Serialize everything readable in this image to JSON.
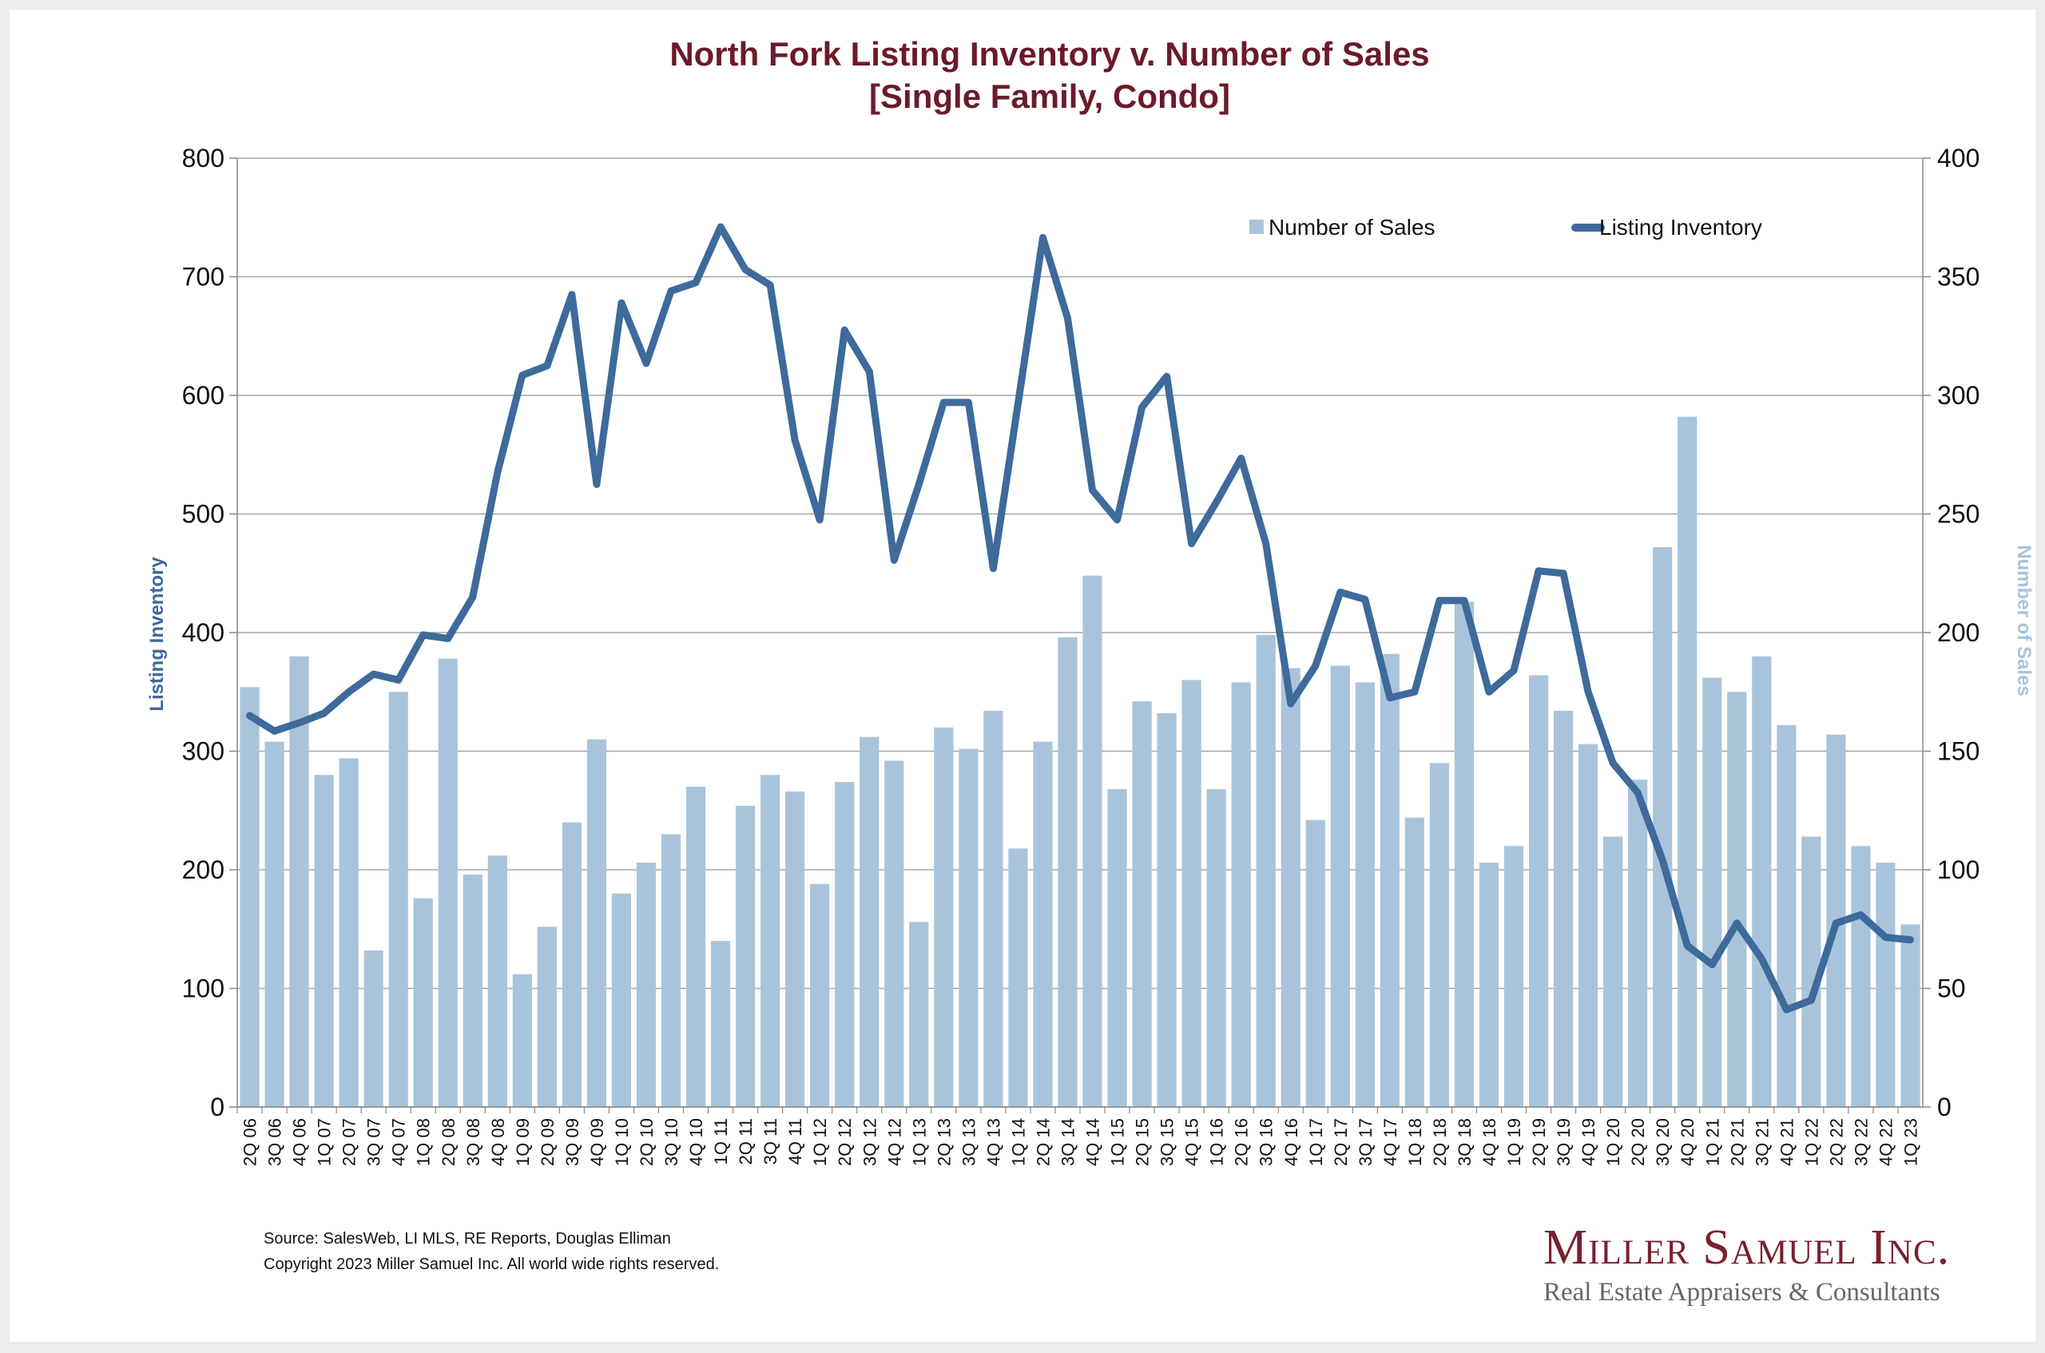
{
  "chart_data": {
    "type": "bar+line",
    "title": "North Fork Listing Inventory v. Number of Sales",
    "subtitle": "[Single Family, Condo]",
    "categories": [
      "2Q 06",
      "3Q 06",
      "4Q 06",
      "1Q 07",
      "2Q 07",
      "3Q 07",
      "4Q 07",
      "1Q 08",
      "2Q 08",
      "3Q 08",
      "4Q 08",
      "1Q 09",
      "2Q 09",
      "3Q 09",
      "4Q 09",
      "1Q 10",
      "2Q 10",
      "3Q 10",
      "4Q 10",
      "1Q 11",
      "2Q 11",
      "3Q 11",
      "4Q 11",
      "1Q 12",
      "2Q 12",
      "3Q 12",
      "4Q 12",
      "1Q 13",
      "2Q 13",
      "3Q 13",
      "4Q 13",
      "1Q 14",
      "2Q 14",
      "3Q 14",
      "4Q 14",
      "1Q 15",
      "2Q 15",
      "3Q 15",
      "4Q 15",
      "1Q 16",
      "2Q 16",
      "3Q 16",
      "4Q 16",
      "1Q 17",
      "2Q 17",
      "3Q 17",
      "4Q 17",
      "1Q 18",
      "2Q 18",
      "3Q 18",
      "4Q 18",
      "1Q 19",
      "2Q 19",
      "3Q 19",
      "4Q 19",
      "1Q 20",
      "2Q 20",
      "3Q 20",
      "4Q 20",
      "1Q 21",
      "2Q 21",
      "3Q 21",
      "4Q 21",
      "1Q 22",
      "2Q 22",
      "3Q 22",
      "4Q 22",
      "1Q 23"
    ],
    "series": [
      {
        "name": "Number of Sales",
        "type": "bar",
        "axis": "right",
        "color": "#a9c4da",
        "values": [
          177,
          154,
          190,
          140,
          147,
          66,
          175,
          88,
          189,
          98,
          106,
          56,
          76,
          120,
          155,
          90,
          103,
          115,
          135,
          70,
          127,
          140,
          133,
          94,
          137,
          156,
          146,
          78,
          160,
          151,
          167,
          109,
          154,
          198,
          224,
          134,
          171,
          166,
          180,
          134,
          179,
          199,
          185,
          121,
          186,
          179,
          191,
          122,
          145,
          213,
          103,
          110,
          182,
          167,
          153,
          114,
          138,
          236,
          291,
          181,
          175,
          190,
          161,
          114,
          157,
          110,
          103,
          77
        ]
      },
      {
        "name": "Listing Inventory",
        "type": "line",
        "axis": "left",
        "color": "#3e6a9c",
        "values": [
          330,
          317,
          324,
          332,
          350,
          365,
          360,
          398,
          395,
          430,
          535,
          617,
          625,
          685,
          525,
          678,
          627,
          688,
          695,
          742,
          706,
          693,
          562,
          495,
          655,
          620,
          461,
          525,
          594,
          594,
          454,
          593,
          733,
          665,
          520,
          495,
          590,
          616,
          475,
          510,
          547,
          475,
          340,
          372,
          434,
          428,
          345,
          350,
          427,
          427,
          350,
          368,
          452,
          450,
          350,
          290,
          265,
          208,
          136,
          120,
          155,
          125,
          82,
          90,
          155,
          162,
          143,
          141
        ]
      }
    ],
    "y_left": {
      "label": "Listing Inventory",
      "min": 0,
      "max": 800,
      "ticks": [
        0,
        100,
        200,
        300,
        400,
        500,
        600,
        700,
        800
      ]
    },
    "y_right": {
      "label": "Number of Sales",
      "min": 0,
      "max": 400,
      "ticks": [
        0,
        50,
        100,
        150,
        200,
        250,
        300,
        350,
        400
      ]
    },
    "grid": true,
    "legend_position": "top-right"
  },
  "footer": {
    "source": "Source: SalesWeb, LI MLS, RE Reports, Douglas Elliman",
    "copyright": "Copyright 2023 Miller Samuel Inc.  All world wide rights reserved."
  },
  "brand": {
    "name": "Miller Samuel Inc.",
    "tagline": "Real Estate Appraisers & Consultants"
  }
}
